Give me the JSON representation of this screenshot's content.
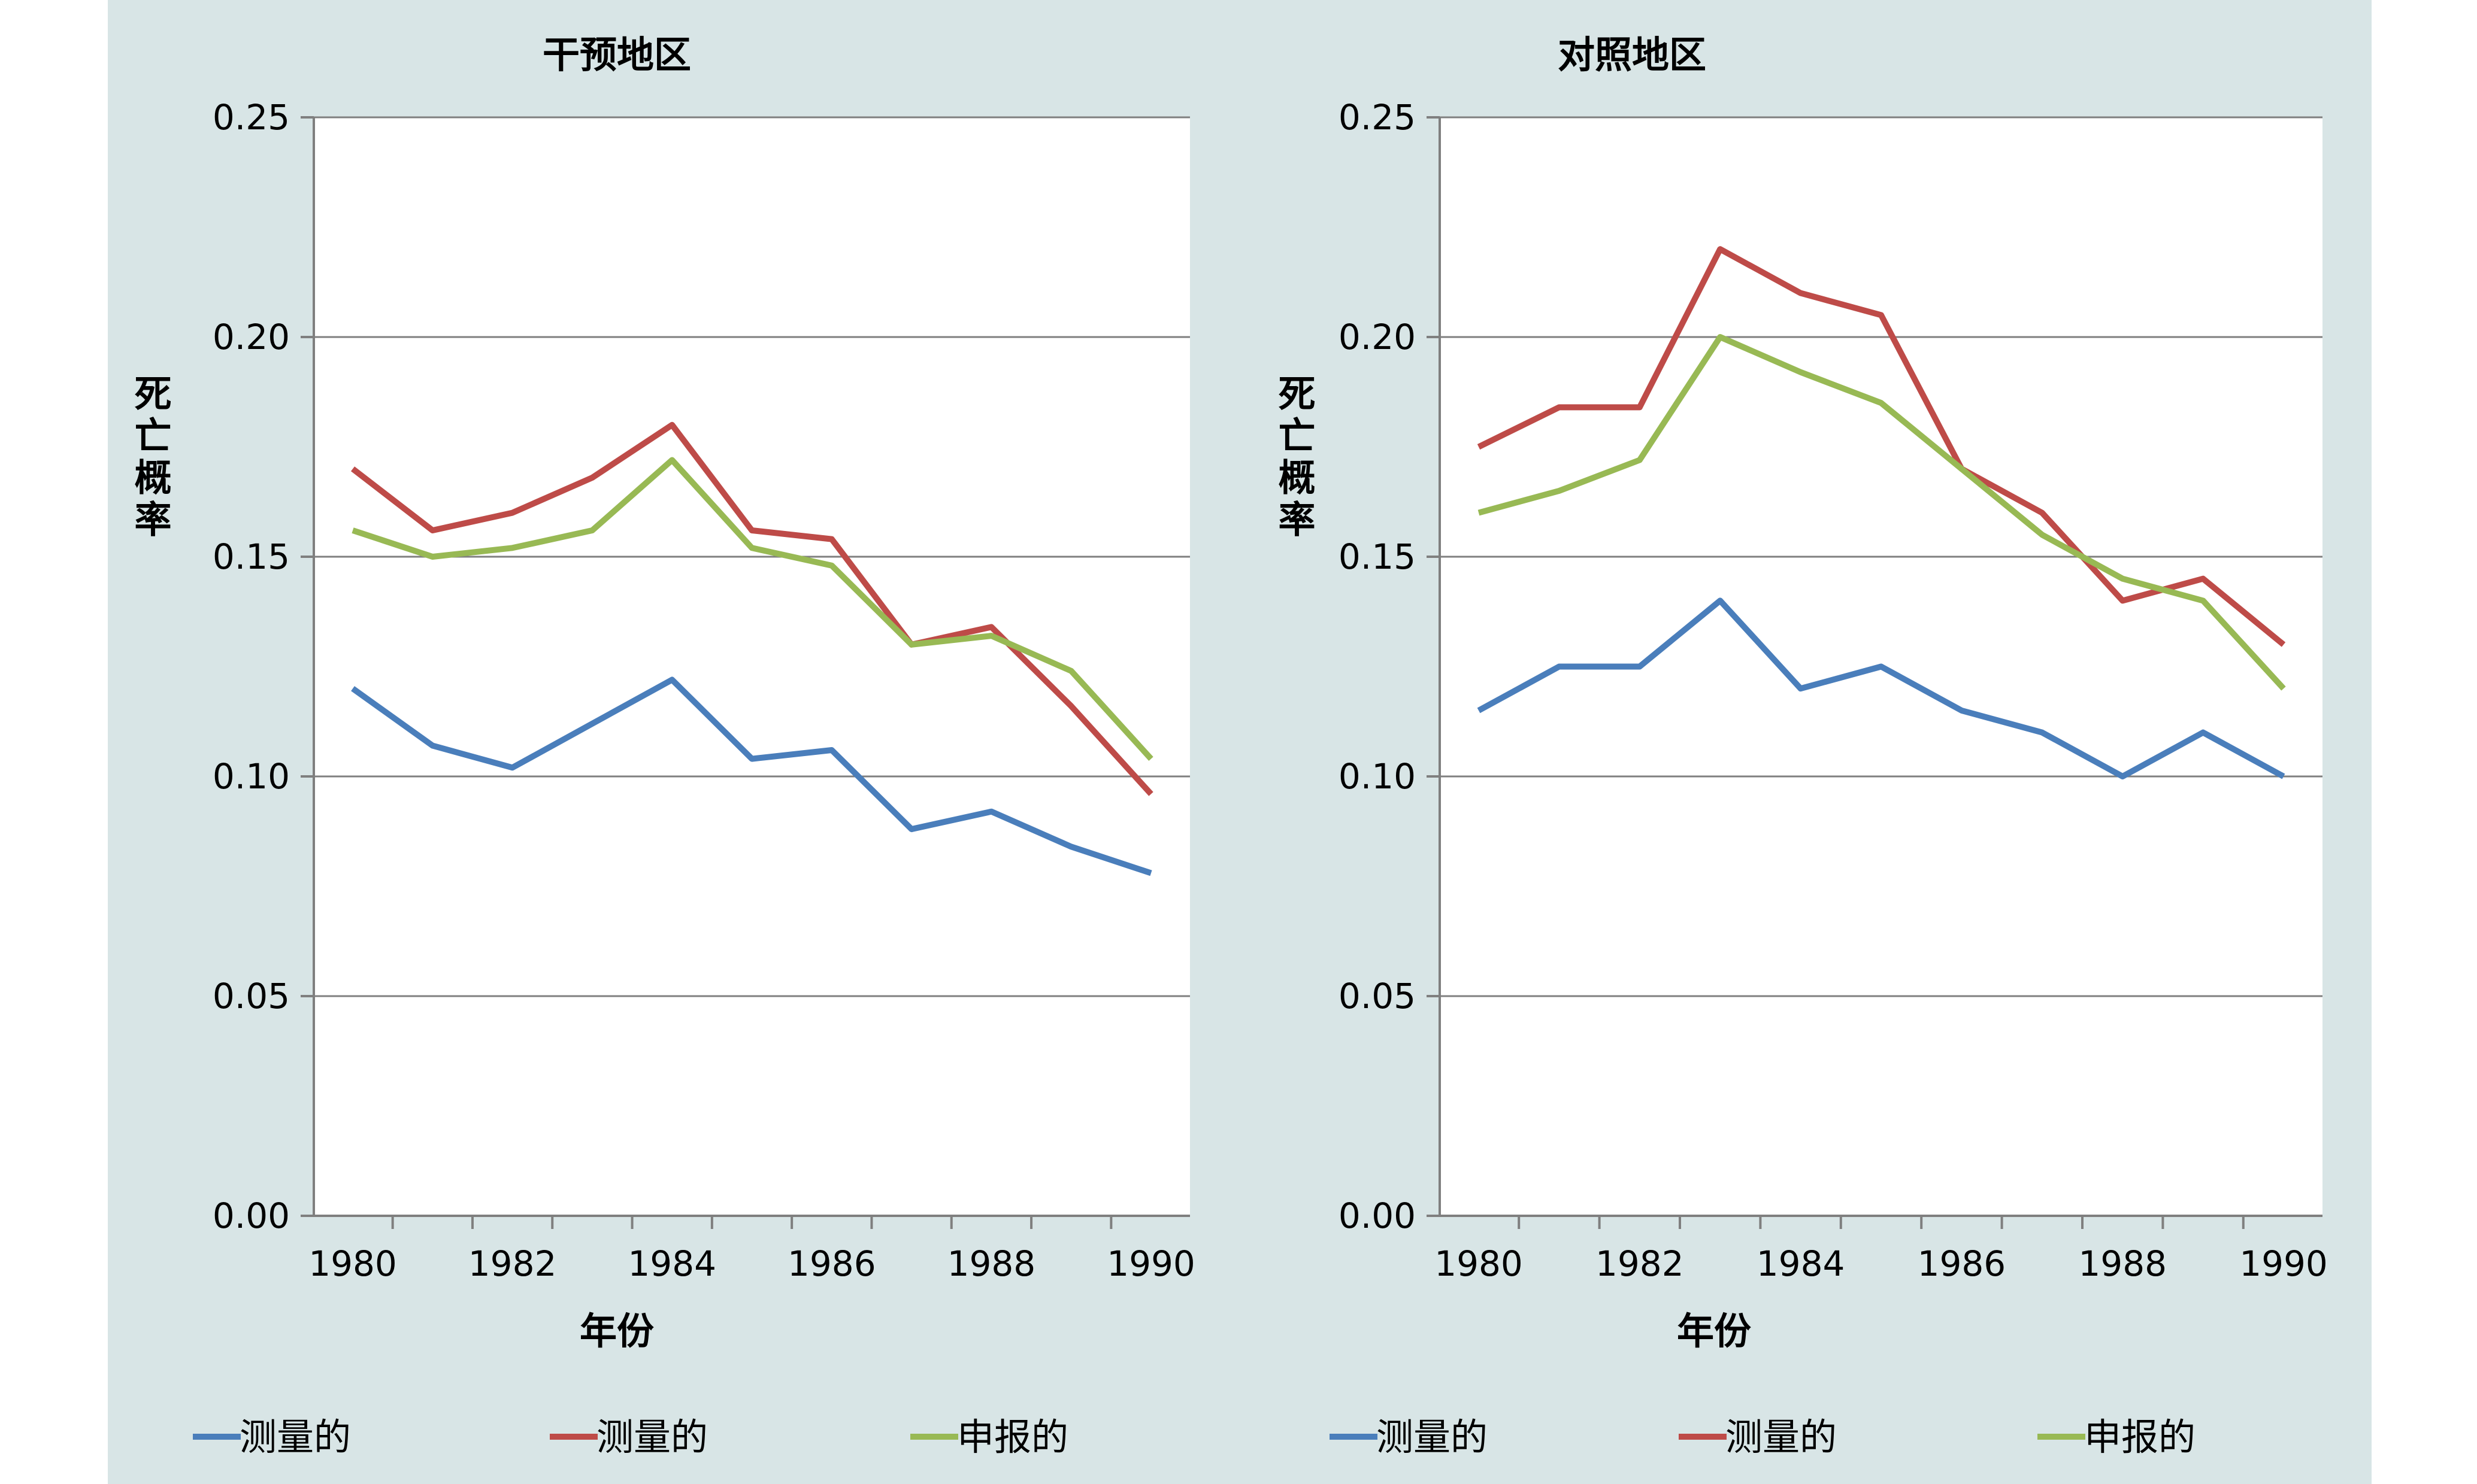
{
  "chart_data": [
    {
      "type": "line",
      "title": "干预地区",
      "xlabel": "年份",
      "ylabel": "死亡概率",
      "x": [
        1980,
        1981,
        1982,
        1983,
        1984,
        1985,
        1986,
        1987,
        1988,
        1989,
        1990
      ],
      "x_ticks": [
        "1980",
        "1982",
        "1984",
        "1986",
        "1988",
        "1990"
      ],
      "y_ticks": [
        "0.00",
        "0.05",
        "0.10",
        "0.15",
        "0.20",
        "0.25"
      ],
      "ylim": [
        0,
        0.25
      ],
      "grid": true,
      "legend_position": "bottom",
      "series": [
        {
          "name": "测量的",
          "color": "#4a7ebb",
          "values": [
            0.12,
            0.107,
            0.102,
            0.112,
            0.122,
            0.104,
            0.106,
            0.088,
            0.092,
            0.084,
            0.078
          ]
        },
        {
          "name": "测量的",
          "color": "#be4b48",
          "values": [
            0.17,
            0.156,
            0.16,
            0.168,
            0.18,
            0.156,
            0.154,
            0.13,
            0.134,
            0.116,
            0.096
          ]
        },
        {
          "name": "申报的",
          "color": "#98b954",
          "values": [
            0.156,
            0.15,
            0.152,
            0.156,
            0.172,
            0.152,
            0.148,
            0.13,
            0.132,
            0.124,
            0.104
          ]
        }
      ]
    },
    {
      "type": "line",
      "title": "对照地区",
      "xlabel": "年份",
      "ylabel": "死亡概率",
      "x": [
        1980,
        1981,
        1982,
        1983,
        1984,
        1985,
        1986,
        1987,
        1988,
        1989,
        1990
      ],
      "x_ticks": [
        "1980",
        "1982",
        "1984",
        "1986",
        "1988",
        "1990"
      ],
      "y_ticks": [
        "0.00",
        "0.05",
        "0.10",
        "0.15",
        "0.20",
        "0.25"
      ],
      "ylim": [
        0,
        0.25
      ],
      "grid": true,
      "legend_position": "bottom",
      "series": [
        {
          "name": "测量的",
          "color": "#4a7ebb",
          "values": [
            0.115,
            0.125,
            0.125,
            0.14,
            0.12,
            0.125,
            0.115,
            0.11,
            0.1,
            0.11,
            0.1
          ]
        },
        {
          "name": "测量的",
          "color": "#be4b48",
          "values": [
            0.175,
            0.184,
            0.184,
            0.22,
            0.21,
            0.205,
            0.17,
            0.16,
            0.14,
            0.145,
            0.13
          ]
        },
        {
          "name": "申报的",
          "color": "#98b954",
          "values": [
            0.16,
            0.165,
            0.172,
            0.2,
            0.192,
            0.185,
            0.17,
            0.155,
            0.145,
            0.14,
            0.12
          ]
        }
      ]
    }
  ]
}
